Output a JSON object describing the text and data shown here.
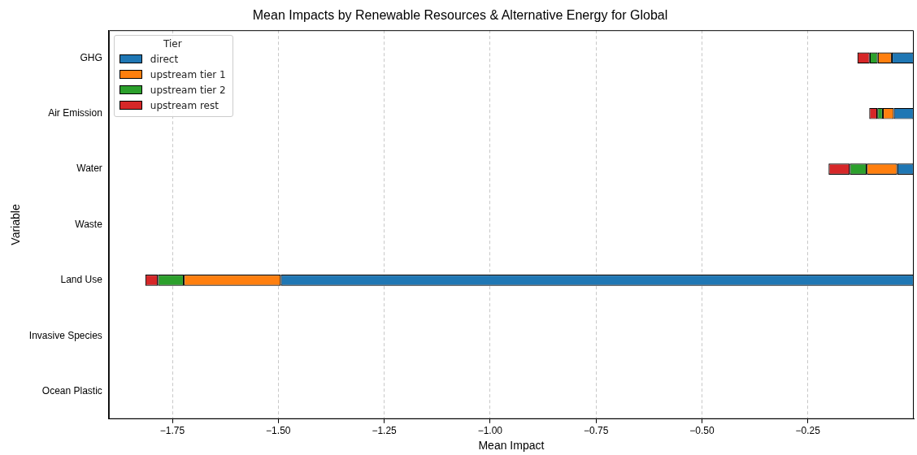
{
  "chart_data": {
    "type": "bar",
    "orientation": "horizontal",
    "stacked": true,
    "title": "Mean Impacts by Renewable Resources & Alternative Energy for Global",
    "xlabel": "Mean Impact",
    "ylabel": "Variable",
    "legend_title": "Tier",
    "legend": "top left",
    "grid": "x",
    "categories": [
      "GHG",
      "Air Emission",
      "Water",
      "Waste",
      "Land Use",
      "Invasive Species",
      "Ocean Plastic"
    ],
    "xlim": [
      -1.9,
      0
    ],
    "xticks": [
      {
        "value": -1.75,
        "label": "−1.75"
      },
      {
        "value": -1.5,
        "label": "−1.50"
      },
      {
        "value": -1.25,
        "label": "−1.25"
      },
      {
        "value": -1.0,
        "label": "−1.00"
      },
      {
        "value": -0.75,
        "label": "−0.75"
      },
      {
        "value": -0.5,
        "label": "−0.50"
      },
      {
        "value": -0.25,
        "label": "−0.25"
      }
    ],
    "series": [
      {
        "name": "direct",
        "color": "#1f77b4",
        "values": [
          -0.052,
          -0.047,
          -0.039,
          null,
          -1.494,
          null,
          null
        ]
      },
      {
        "name": "upstream tier 1",
        "color": "#ff7f0e",
        "values": [
          -0.033,
          -0.026,
          -0.072,
          null,
          -0.229,
          null,
          null
        ]
      },
      {
        "name": "upstream tier 2",
        "color": "#2ca02c",
        "values": [
          -0.019,
          -0.013,
          -0.04,
          null,
          -0.061,
          null,
          null
        ]
      },
      {
        "name": "upstream rest",
        "color": "#d62728",
        "values": [
          -0.029,
          -0.019,
          -0.05,
          null,
          -0.03,
          null,
          null
        ]
      }
    ]
  }
}
